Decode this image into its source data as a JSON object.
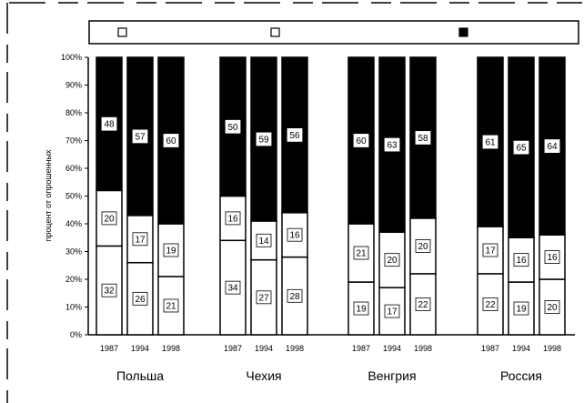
{
  "chart_data": {
    "type": "bar",
    "stacked": true,
    "ylabel": "процент от опрошенных",
    "ylim": [
      0,
      100
    ],
    "yticks": [
      "0%",
      "10%",
      "20%",
      "30%",
      "40%",
      "50%",
      "60%",
      "70%",
      "80%",
      "90%",
      "100%"
    ],
    "groups": [
      {
        "name": "Польша",
        "categories": [
          "1987",
          "1994",
          "1998"
        ]
      },
      {
        "name": "Чехия",
        "categories": [
          "1987",
          "1994",
          "1998"
        ]
      },
      {
        "name": "Венгрия",
        "categories": [
          "1987",
          "1994",
          "1998"
        ]
      },
      {
        "name": "Россия",
        "categories": [
          "1987",
          "1994",
          "1998"
        ]
      }
    ],
    "series": [
      {
        "name": "",
        "color": "#ffffff",
        "values": [
          32,
          26,
          21,
          34,
          27,
          28,
          19,
          17,
          22,
          22,
          19,
          20
        ],
        "labels": [
          "32",
          "26",
          "21",
          "34",
          "27",
          "28",
          "19",
          "17",
          "22",
          "22",
          "19",
          "20"
        ]
      },
      {
        "name": "",
        "color": "#ffffff",
        "values": [
          20,
          17,
          19,
          16,
          14,
          16,
          21,
          20,
          20,
          17,
          16,
          16
        ],
        "labels": [
          "20",
          "17",
          "19",
          "16",
          "14",
          "16",
          "21",
          "20",
          "20",
          "17",
          "16",
          "16"
        ]
      },
      {
        "name": "",
        "color": "#000000",
        "values": [
          48,
          57,
          60,
          50,
          59,
          56,
          60,
          63,
          58,
          61,
          65,
          64
        ],
        "labels": [
          "48",
          "57",
          "60",
          "50",
          "59",
          "56",
          "60",
          "63",
          "58",
          "61",
          "65",
          "64"
        ]
      }
    ],
    "legend": "top"
  }
}
